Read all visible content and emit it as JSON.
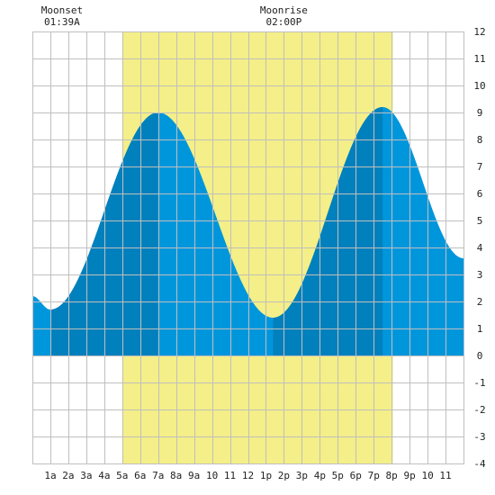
{
  "chart_data": {
    "type": "area",
    "title": "",
    "xlabel": "",
    "ylabel": "",
    "xlim": [
      0,
      24
    ],
    "ylim": [
      -4,
      12
    ],
    "grid": true,
    "x_tick_labels": [
      {
        "h": 1,
        "label": "1a"
      },
      {
        "h": 2,
        "label": "2a"
      },
      {
        "h": 3,
        "label": "3a"
      },
      {
        "h": 4,
        "label": "4a"
      },
      {
        "h": 5,
        "label": "5a"
      },
      {
        "h": 6,
        "label": "6a"
      },
      {
        "h": 7,
        "label": "7a"
      },
      {
        "h": 8,
        "label": "8a"
      },
      {
        "h": 9,
        "label": "9a"
      },
      {
        "h": 10,
        "label": "10"
      },
      {
        "h": 11,
        "label": "11"
      },
      {
        "h": 12,
        "label": "12"
      },
      {
        "h": 13,
        "label": "1p"
      },
      {
        "h": 14,
        "label": "2p"
      },
      {
        "h": 15,
        "label": "3p"
      },
      {
        "h": 16,
        "label": "4p"
      },
      {
        "h": 17,
        "label": "5p"
      },
      {
        "h": 18,
        "label": "6p"
      },
      {
        "h": 19,
        "label": "7p"
      },
      {
        "h": 20,
        "label": "8p"
      },
      {
        "h": 21,
        "label": "9p"
      },
      {
        "h": 22,
        "label": "10"
      },
      {
        "h": 23,
        "label": "11"
      }
    ],
    "y_ticks": [
      -4,
      -3,
      -2,
      -1,
      0,
      1,
      2,
      3,
      4,
      5,
      6,
      7,
      8,
      9,
      10,
      11,
      12
    ],
    "daylight": {
      "start": 5.0,
      "end": 20.07,
      "color": "#f4ef88"
    },
    "tide_extremes": [
      {
        "type": "low",
        "x": 1.0,
        "y": 1.7
      },
      {
        "type": "high",
        "x": 7.0,
        "y": 9.0
      },
      {
        "type": "low",
        "x": 13.4,
        "y": 1.4
      },
      {
        "type": "high",
        "x": 19.5,
        "y": 9.2
      }
    ],
    "tide_edges": {
      "start_y": 2.2,
      "end_y": 3.6
    },
    "rising_shade_segments": [
      [
        1.0,
        7.0
      ],
      [
        13.4,
        19.5
      ]
    ],
    "colors": {
      "tide": "#0096dc",
      "tide_rising": "#0080bc",
      "grid": "#bfbfbf",
      "background": "#ffffff"
    },
    "annotations": [
      {
        "name": "moonset",
        "label": "Moonset",
        "time": "01:39A",
        "x": 1.65
      },
      {
        "name": "moonrise",
        "label": "Moonrise",
        "time": "02:00P",
        "x": 14.0
      }
    ]
  }
}
